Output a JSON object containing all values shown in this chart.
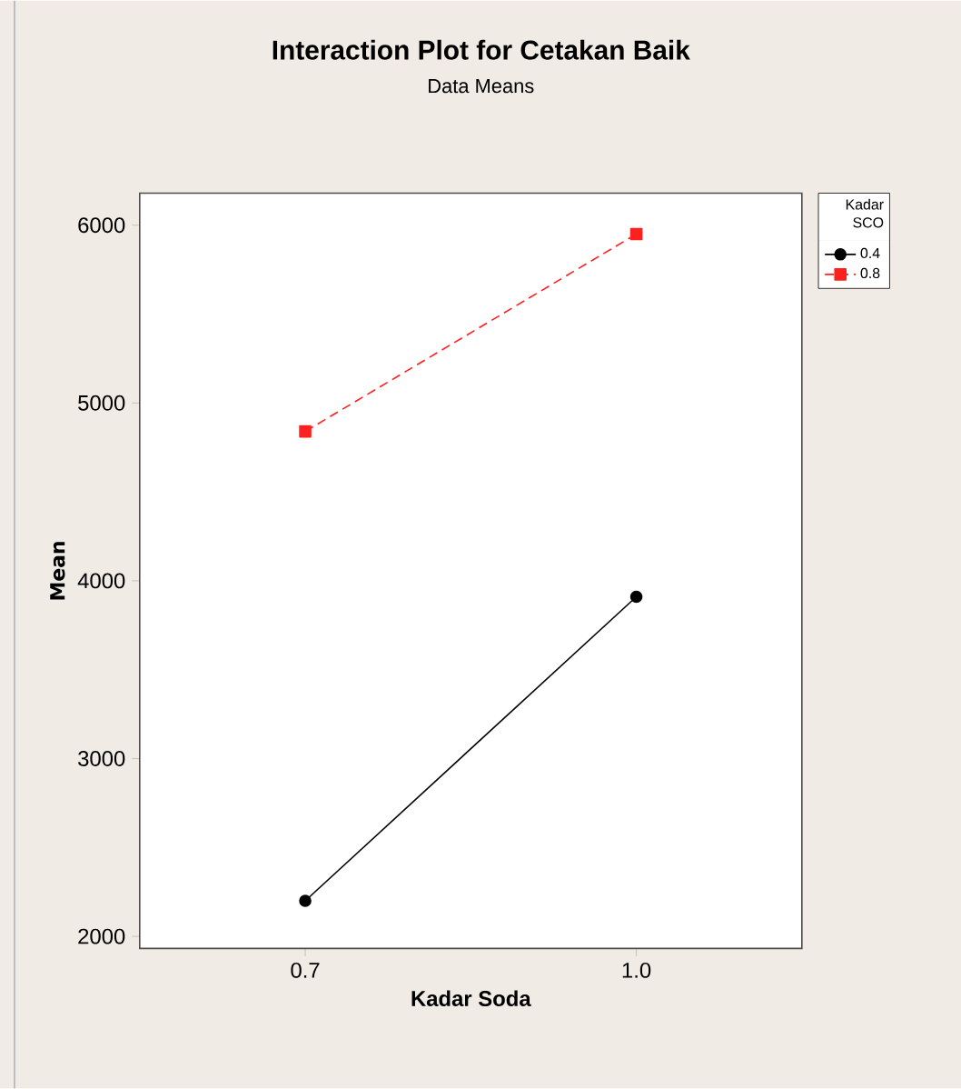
{
  "chart_data": {
    "type": "line",
    "title": "Interaction Plot for Cetakan Baik",
    "subtitle": "Data Means",
    "xlabel": "Kadar Soda",
    "ylabel": "Mean",
    "legend_title": "Kadar SCO",
    "categories": [
      "0.7",
      "1.0"
    ],
    "series": [
      {
        "name": "0.4",
        "color": "#000000",
        "values": [
          2200,
          3910
        ],
        "marker": "circle",
        "line_style": "solid"
      },
      {
        "name": "0.8",
        "color": "#ff2020",
        "values": [
          4840,
          5950
        ],
        "marker": "square",
        "line_style": "dashed"
      }
    ],
    "ylim": [
      1932,
      6180
    ],
    "yticks": [
      2000,
      3000,
      4000,
      5000,
      6000
    ],
    "grid": false,
    "legend": "top right"
  }
}
